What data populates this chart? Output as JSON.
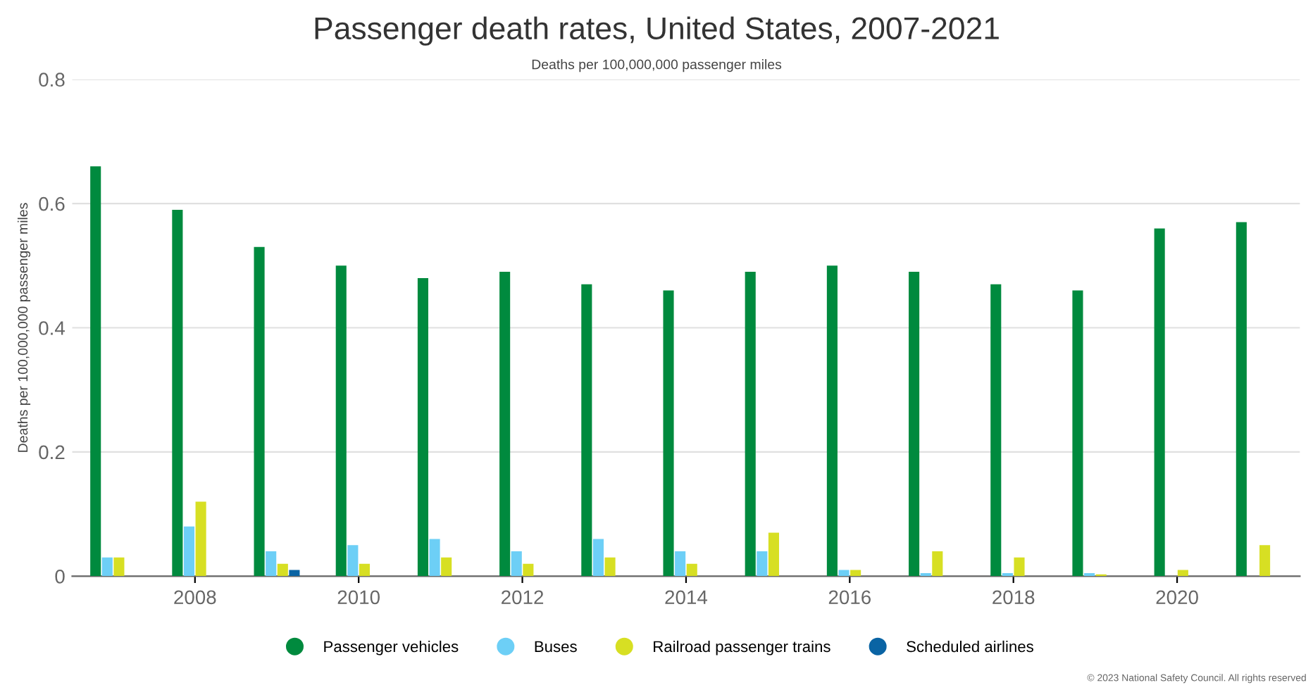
{
  "chart_data": {
    "type": "bar",
    "title": "Passenger death rates, United States, 2007-2021",
    "subtitle": "Deaths per 100,000,000 passenger miles",
    "ylabel": "Deaths per 100,000,000 passenger miles",
    "categories": [
      null,
      "2008",
      null,
      "2010",
      null,
      "2012",
      null,
      "2014",
      null,
      "2016",
      null,
      "2018",
      null,
      "2020",
      null
    ],
    "series": [
      {
        "name": "Passenger vehicles",
        "color": "#008a3e",
        "values": [
          0.66,
          0.59,
          0.53,
          0.5,
          0.48,
          0.49,
          0.47,
          0.46,
          0.49,
          0.5,
          0.49,
          0.47,
          0.46,
          0.56,
          0.57
        ]
      },
      {
        "name": "Buses",
        "color": "#6dcff6",
        "values": [
          0.03,
          0.08,
          0.04,
          0.05,
          0.06,
          0.04,
          0.06,
          0.04,
          0.04,
          0.01,
          0.005,
          0.005,
          0.005,
          null,
          null
        ]
      },
      {
        "name": "Railroad passenger trains",
        "color": "#d7df23",
        "values": [
          0.03,
          0.12,
          0.02,
          0.02,
          0.03,
          0.02,
          0.03,
          0.02,
          0.07,
          0.01,
          0.04,
          0.03,
          0.003,
          0.01,
          0.05
        ]
      },
      {
        "name": "Scheduled airlines",
        "color": "#0a64a4",
        "values": [
          null,
          null,
          0.01,
          null,
          null,
          null,
          null,
          null,
          null,
          null,
          null,
          null,
          null,
          null,
          null
        ]
      }
    ],
    "ylim": [
      0,
      0.8
    ],
    "yticks": [
      0,
      0.2,
      0.4,
      0.6,
      0.8
    ],
    "grid": "y",
    "legend": "bottom",
    "annotations": [
      "© 2023 National Safety Council. All rights reserved"
    ]
  }
}
